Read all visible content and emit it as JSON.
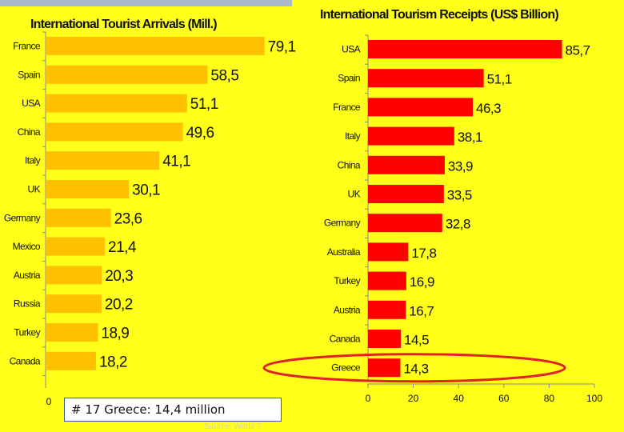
{
  "chart_data": [
    {
      "type": "bar",
      "orientation": "horizontal",
      "title": "International Tourist Arrivals (Mill.)",
      "categories": [
        "France",
        "Spain",
        "USA",
        "China",
        "Italy",
        "UK",
        "Germany",
        "Mexico",
        "Austria",
        "Russia",
        "Turkey",
        "Canada"
      ],
      "values": [
        79.1,
        58.5,
        51.1,
        49.6,
        41.1,
        30.1,
        23.6,
        21.4,
        20.3,
        20.2,
        18.9,
        18.2
      ],
      "value_labels": [
        "79,1",
        "58,5",
        "51,1",
        "49,6",
        "41,1",
        "30,1",
        "23,6",
        "21,4",
        "20,3",
        "20,2",
        "18,9",
        "18,2"
      ],
      "xticks": [
        "0"
      ],
      "xlim": [
        0,
        100
      ],
      "grid": false,
      "bar_color": "#ffc000"
    },
    {
      "type": "bar",
      "orientation": "horizontal",
      "title": "International Tourism Receipts (US$ Billion)",
      "categories": [
        "USA",
        "Spain",
        "France",
        "Italy",
        "China",
        "UK",
        "Germany",
        "Australia",
        "Turkey",
        "Austria",
        "Canada",
        "Greece"
      ],
      "values": [
        85.7,
        51.1,
        46.3,
        38.1,
        33.9,
        33.5,
        32.8,
        17.8,
        16.9,
        16.7,
        14.5,
        14.3
      ],
      "value_labels": [
        "85,7",
        "51,1",
        "46,3",
        "38,1",
        "33,9",
        "33,5",
        "32,8",
        "17,8",
        "16,9",
        "16,7",
        "14,5",
        "14,3"
      ],
      "xticks": [
        "0",
        "20",
        "40",
        "60",
        "80",
        "100"
      ],
      "xlim": [
        0,
        100
      ],
      "grid": false,
      "bar_color": "#ff0000",
      "highlight": "Greece",
      "highlight_color": "#e0202a"
    }
  ],
  "note": {
    "text": "# 17 Greece: 14,4 million"
  },
  "source": {
    "text": "Source: World T"
  }
}
